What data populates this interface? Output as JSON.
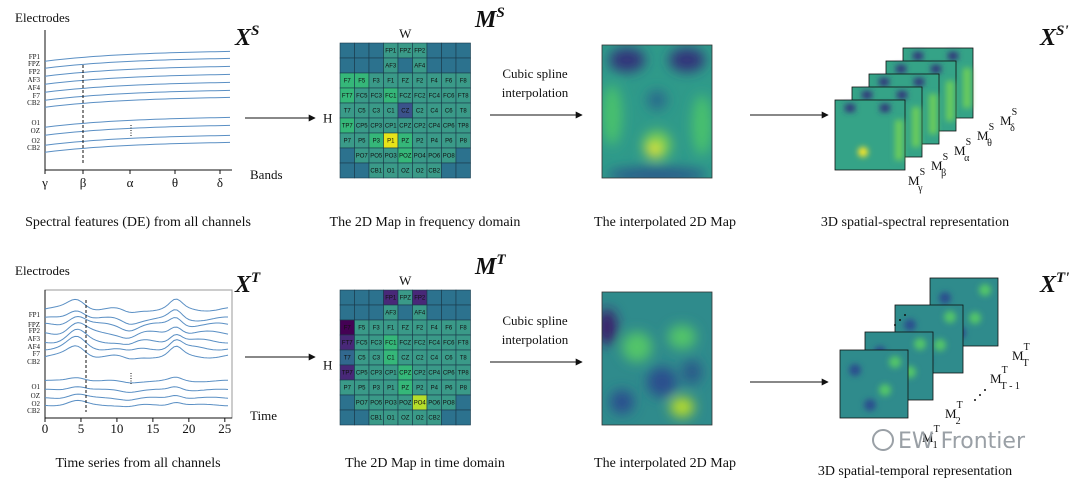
{
  "top": {
    "plot": {
      "y_label": "Electrodes",
      "x_label": "Bands",
      "electrodes": [
        "FP1",
        "FPZ",
        "FP2",
        "AF3",
        "AF4",
        "F7",
        "CB2",
        "O1",
        "OZ",
        "O2",
        "CB2"
      ],
      "bands": [
        "γ",
        "β",
        "α",
        "θ",
        "δ"
      ],
      "symbol": {
        "base": "X",
        "sup": "S"
      },
      "caption": "Spectral features (DE) from all channels"
    },
    "map": {
      "symbol": {
        "base": "M",
        "sup": "S"
      },
      "w": "W",
      "h": "H",
      "cells": [
        [
          null,
          null,
          null,
          "FP1",
          "FPZ",
          "FP2",
          null,
          null,
          null
        ],
        [
          null,
          null,
          null,
          "AF3",
          null,
          "AF4",
          null,
          null,
          null
        ],
        [
          "F7",
          "F5",
          "F3",
          "F1",
          "FZ",
          "F2",
          "F4",
          "F6",
          "F8"
        ],
        [
          "FT7",
          "FC5",
          "FC3",
          "FC1",
          "FCZ",
          "FC2",
          "FC4",
          "FC6",
          "FT8"
        ],
        [
          "T7",
          "C5",
          "C3",
          "C1",
          "CZ",
          "C2",
          "C4",
          "C6",
          "T8"
        ],
        [
          "TP7",
          "CP5",
          "CP3",
          "CP1",
          "CPZ",
          "CP2",
          "CP4",
          "CP6",
          "TP8"
        ],
        [
          "P7",
          "P5",
          "P3",
          "P1",
          "PZ",
          "P2",
          "P4",
          "P6",
          "P8"
        ],
        [
          null,
          "PO7",
          "PO5",
          "PO3",
          "POZ",
          "PO4",
          "PO6",
          "PO8",
          null
        ],
        [
          null,
          null,
          "CB1",
          "O1",
          "OZ",
          "O2",
          "CB2",
          null,
          null
        ]
      ],
      "caption": "The 2D Map in frequency domain"
    },
    "arrow_text": [
      "Cubic spline",
      "interpolation"
    ],
    "interp_caption": "The interpolated 2D Map",
    "stack": {
      "symbol": {
        "base": "X",
        "sup": "S'"
      },
      "layers": [
        {
          "base": "M",
          "sup": "S",
          "sub": "γ"
        },
        {
          "base": "M",
          "sup": "S",
          "sub": "β"
        },
        {
          "base": "M",
          "sup": "S",
          "sub": "α"
        },
        {
          "base": "M",
          "sup": "S",
          "sub": "θ"
        },
        {
          "base": "M",
          "sup": "S",
          "sub": "δ"
        }
      ],
      "caption": "3D spatial-spectral representation"
    }
  },
  "bottom": {
    "plot": {
      "y_label": "Electrodes",
      "x_label": "Time",
      "electrodes": [
        "FP1",
        "FPZ",
        "FP2",
        "AF3",
        "AF4",
        "F7",
        "CB2",
        "O1",
        "OZ",
        "O2",
        "CB2"
      ],
      "xticks": [
        0,
        5,
        10,
        15,
        20,
        25
      ],
      "xlim": [
        0,
        26
      ],
      "symbol": {
        "base": "X",
        "sup": "T"
      },
      "caption": "Time series from all channels"
    },
    "map": {
      "symbol": {
        "base": "M",
        "sup": "T"
      },
      "w": "W",
      "h": "H",
      "cells": [
        [
          null,
          null,
          null,
          "FP1",
          "FPZ",
          "FP2",
          null,
          null,
          null
        ],
        [
          null,
          null,
          null,
          "AF3",
          null,
          "AF4",
          null,
          null,
          null
        ],
        [
          "F7",
          "F5",
          "F3",
          "F1",
          "FZ",
          "F2",
          "F4",
          "F6",
          "F8"
        ],
        [
          "FT7",
          "FC5",
          "FC3",
          "FC1",
          "FCZ",
          "FC2",
          "FC4",
          "FC6",
          "FT8"
        ],
        [
          "T7",
          "C5",
          "C3",
          "C1",
          "CZ",
          "C2",
          "C4",
          "C6",
          "T8"
        ],
        [
          "TP7",
          "CP5",
          "CP3",
          "CP1",
          "CPZ",
          "CP2",
          "CP4",
          "CP6",
          "TP8"
        ],
        [
          "P7",
          "P5",
          "P3",
          "P1",
          "PZ",
          "P2",
          "P4",
          "P6",
          "P8"
        ],
        [
          null,
          "PO7",
          "PO5",
          "PO3",
          "POZ",
          "PO4",
          "PO6",
          "PO8",
          null
        ],
        [
          null,
          null,
          "CB1",
          "O1",
          "OZ",
          "O2",
          "CB2",
          null,
          null
        ]
      ],
      "caption": "The 2D Map in time domain"
    },
    "arrow_text": [
      "Cubic spline",
      "interpolation"
    ],
    "interp_caption": "The interpolated 2D Map",
    "stack": {
      "symbol": {
        "base": "X",
        "sup": "T'"
      },
      "layers": [
        {
          "base": "M",
          "sup": "T",
          "sub": "1"
        },
        {
          "base": "M",
          "sup": "T",
          "sub": "2"
        },
        {
          "base": "M",
          "sup": "T",
          "sub": "T - 1"
        },
        {
          "base": "M",
          "sup": "T",
          "sub": "T"
        }
      ],
      "caption": "3D spatial-temporal representation"
    }
  },
  "watermark": "EW Frontier"
}
